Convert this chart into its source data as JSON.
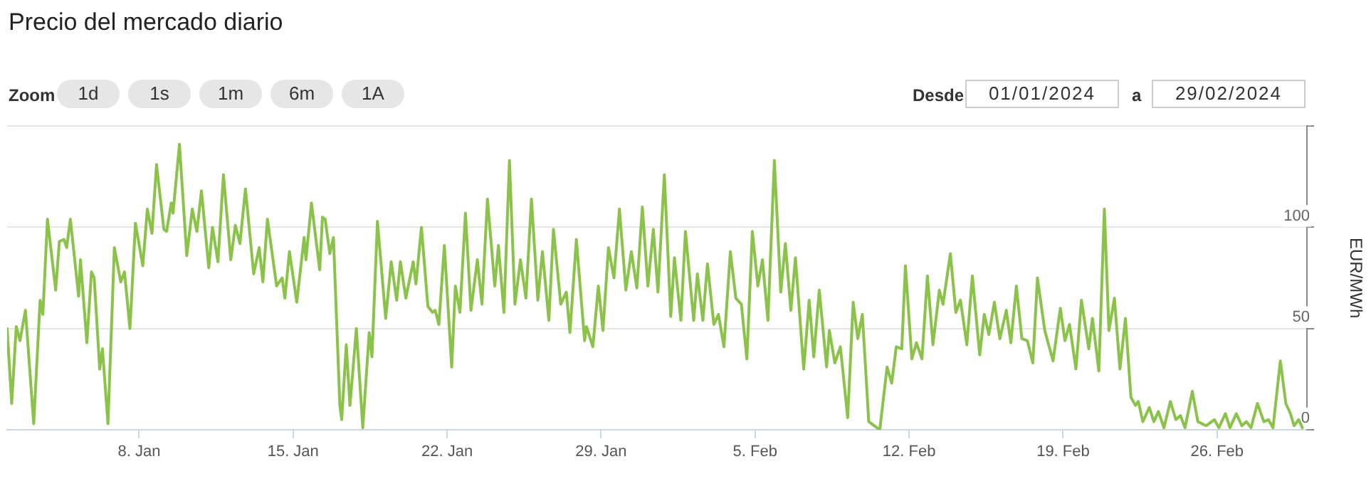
{
  "chart_data": {
    "type": "line",
    "title": "Precio del mercado diario",
    "ylabel": "EUR/MWh",
    "annotations": [
      "Zoom",
      "1d",
      "1s",
      "1m",
      "6m",
      "1A",
      "Desde",
      "01/01/2024",
      "a",
      "29/02/2024"
    ],
    "xlim": [
      "2024-01-02T00:00",
      "2024-03-01T02:00"
    ],
    "xticks": [
      {
        "value": "2024-01-08",
        "label": "8. Jan"
      },
      {
        "value": "2024-01-15",
        "label": "15. Jan"
      },
      {
        "value": "2024-01-22",
        "label": "22. Jan"
      },
      {
        "value": "2024-01-29",
        "label": "29. Jan"
      },
      {
        "value": "2024-02-05",
        "label": "5. Feb"
      },
      {
        "value": "2024-02-12",
        "label": "12. Feb"
      },
      {
        "value": "2024-02-19",
        "label": "19. Feb"
      },
      {
        "value": "2024-02-26",
        "label": "26. Feb"
      }
    ],
    "ylim": [
      0,
      150
    ],
    "yticks": [
      0,
      50,
      100,
      {
        "value": 150,
        "label": null
      }
    ],
    "grid": "y",
    "legend": false,
    "marker": "none",
    "line_style": "solid",
    "series": [
      {
        "color": "#8bc34a",
        "x": [
          "2024-01-02T00:00",
          "2024-01-02T05:00",
          "2024-01-02T10:00",
          "2024-01-02T14:00",
          "2024-01-02T20:00",
          "2024-01-03T05:00",
          "2024-01-03T12:00",
          "2024-01-03T15:00",
          "2024-01-03T20:00",
          "2024-01-04T05:00",
          "2024-01-04T09:00",
          "2024-01-04T14:00",
          "2024-01-04T17:00",
          "2024-01-04T21:00",
          "2024-01-05T06:00",
          "2024-01-05T08:00",
          "2024-01-05T15:00",
          "2024-01-05T20:00",
          "2024-01-05T23:00",
          "2024-01-06T05:00",
          "2024-01-06T08:00",
          "2024-01-06T14:00",
          "2024-01-06T21:00",
          "2024-01-07T04:00",
          "2024-01-07T08:00",
          "2024-01-07T14:00",
          "2024-01-07T20:00",
          "2024-01-08T04:00",
          "2024-01-08T09:00",
          "2024-01-08T14:00",
          "2024-01-08T19:00",
          "2024-01-09T03:00",
          "2024-01-09T06:00",
          "2024-01-09T11:00",
          "2024-01-09T13:00",
          "2024-01-09T20:00",
          "2024-01-10T04:00",
          "2024-01-10T10:00",
          "2024-01-10T15:00",
          "2024-01-10T20:00",
          "2024-01-11T04:00",
          "2024-01-11T08:00",
          "2024-01-11T14:00",
          "2024-01-11T20:00",
          "2024-01-12T04:00",
          "2024-01-12T09:00",
          "2024-01-12T14:00",
          "2024-01-12T20:00",
          "2024-01-13T05:00",
          "2024-01-13T11:00",
          "2024-01-13T15:00",
          "2024-01-13T20:00",
          "2024-01-14T06:00",
          "2024-01-14T12:00",
          "2024-01-14T15:00",
          "2024-01-14T20:00",
          "2024-01-15T04:00",
          "2024-01-15T12:00",
          "2024-01-15T14:00",
          "2024-01-15T20:00",
          "2024-01-16T05:00",
          "2024-01-16T08:00",
          "2024-01-16T11:00",
          "2024-01-16T16:00",
          "2024-01-16T20:00",
          "2024-01-17T03:00",
          "2024-01-17T05:00",
          "2024-01-17T10:00",
          "2024-01-17T14:00",
          "2024-01-17T21:00",
          "2024-01-18T04:00",
          "2024-01-18T11:00",
          "2024-01-18T14:00",
          "2024-01-18T20:00",
          "2024-01-19T05:00",
          "2024-01-19T11:00",
          "2024-01-19T17:00",
          "2024-01-19T21:00",
          "2024-01-20T03:00",
          "2024-01-20T11:00",
          "2024-01-20T14:00",
          "2024-01-20T20:00",
          "2024-01-21T03:00",
          "2024-01-21T08:00",
          "2024-01-21T11:00",
          "2024-01-21T15:00",
          "2024-01-21T21:00",
          "2024-01-22T05:00",
          "2024-01-22T09:00",
          "2024-01-22T14:00",
          "2024-01-22T20:00",
          "2024-01-23T02:00",
          "2024-01-23T09:00",
          "2024-01-23T14:00",
          "2024-01-23T20:00",
          "2024-01-24T04:00",
          "2024-01-24T08:00",
          "2024-01-24T14:00",
          "2024-01-24T20:00",
          "2024-01-25T02:00",
          "2024-01-25T08:00",
          "2024-01-25T14:00",
          "2024-01-25T20:00",
          "2024-01-26T03:00",
          "2024-01-26T08:00",
          "2024-01-26T15:00",
          "2024-01-26T20:00",
          "2024-01-27T04:00",
          "2024-01-27T10:00",
          "2024-01-27T14:00",
          "2024-01-27T21:00",
          "2024-01-28T06:00",
          "2024-01-28T08:00",
          "2024-01-28T15:00",
          "2024-01-28T21:00",
          "2024-01-29T02:00",
          "2024-01-29T08:00",
          "2024-01-29T14:00",
          "2024-01-29T20:00",
          "2024-01-30T03:00",
          "2024-01-30T09:00",
          "2024-01-30T15:00",
          "2024-01-30T21:00",
          "2024-01-31T03:00",
          "2024-01-31T09:00",
          "2024-01-31T14:00",
          "2024-01-31T21:00",
          "2024-02-01T04:00",
          "2024-02-01T08:00",
          "2024-02-01T15:00",
          "2024-02-01T20:00",
          "2024-02-02T05:00",
          "2024-02-02T09:00",
          "2024-02-02T15:00",
          "2024-02-02T20:00",
          "2024-02-03T03:00",
          "2024-02-03T08:00",
          "2024-02-03T14:00",
          "2024-02-03T21:00",
          "2024-02-04T03:00",
          "2024-02-04T09:00",
          "2024-02-04T15:00",
          "2024-02-04T21:00",
          "2024-02-05T03:00",
          "2024-02-05T08:00",
          "2024-02-05T14:00",
          "2024-02-05T21:00",
          "2024-02-06T04:00",
          "2024-02-06T09:00",
          "2024-02-06T15:00",
          "2024-02-06T20:00",
          "2024-02-07T05:00",
          "2024-02-07T11:00",
          "2024-02-07T16:00",
          "2024-02-07T22:00",
          "2024-02-08T06:00",
          "2024-02-08T09:00",
          "2024-02-08T15:00",
          "2024-02-08T21:00",
          "2024-02-09T05:00",
          "2024-02-09T11:00",
          "2024-02-09T16:00",
          "2024-02-09T21:00",
          "2024-02-10T04:00",
          "2024-02-10T10:00",
          "2024-02-10T16:00",
          "2024-02-11T00:00",
          "2024-02-11T05:00",
          "2024-02-11T10:00",
          "2024-02-11T16:00",
          "2024-02-11T20:00",
          "2024-02-12T03:00",
          "2024-02-12T08:00",
          "2024-02-12T14:00",
          "2024-02-12T20:00",
          "2024-02-13T02:00",
          "2024-02-13T09:00",
          "2024-02-13T13:00",
          "2024-02-13T21:00",
          "2024-02-14T03:00",
          "2024-02-14T08:00",
          "2024-02-14T15:00",
          "2024-02-14T21:00",
          "2024-02-15T05:00",
          "2024-02-15T10:00",
          "2024-02-15T15:00",
          "2024-02-15T21:00",
          "2024-02-16T03:00",
          "2024-02-16T10:00",
          "2024-02-16T15:00",
          "2024-02-16T21:00",
          "2024-02-17T03:00",
          "2024-02-17T09:00",
          "2024-02-17T15:00",
          "2024-02-17T20:00",
          "2024-02-18T04:00",
          "2024-02-18T13:00",
          "2024-02-18T21:00",
          "2024-02-19T02:00",
          "2024-02-19T07:00",
          "2024-02-19T14:00",
          "2024-02-19T20:00",
          "2024-02-20T04:00",
          "2024-02-20T08:00",
          "2024-02-20T15:00",
          "2024-02-20T21:00",
          "2024-02-21T02:00",
          "2024-02-21T08:00",
          "2024-02-21T14:00",
          "2024-02-21T20:00",
          "2024-02-22T02:00",
          "2024-02-22T07:00",
          "2024-02-22T10:00",
          "2024-02-22T15:00",
          "2024-02-22T22:00",
          "2024-02-23T03:00",
          "2024-02-23T08:00",
          "2024-02-23T14:00",
          "2024-02-23T21:00",
          "2024-02-24T03:00",
          "2024-02-24T08:00",
          "2024-02-24T13:00",
          "2024-02-24T21:00",
          "2024-02-25T03:00",
          "2024-02-25T12:00",
          "2024-02-25T21:00",
          "2024-02-26T02:00",
          "2024-02-26T09:00",
          "2024-02-26T14:00",
          "2024-02-26T21:00",
          "2024-02-27T03:00",
          "2024-02-27T08:00",
          "2024-02-27T13:00",
          "2024-02-27T20:00",
          "2024-02-28T03:00",
          "2024-02-28T08:00",
          "2024-02-28T13:00",
          "2024-02-28T21:00",
          "2024-02-29T03:00",
          "2024-02-29T08:00",
          "2024-02-29T12:00",
          "2024-02-29T17:00",
          "2024-02-29T21:00"
        ],
        "values": [
          50,
          13,
          51,
          44,
          59,
          3,
          64,
          57,
          104,
          69,
          93,
          94,
          90,
          104,
          66,
          84,
          43,
          78,
          75,
          30,
          40,
          3,
          90,
          73,
          78,
          50,
          102,
          81,
          109,
          97,
          131,
          99,
          98,
          112,
          107,
          141,
          86,
          109,
          98,
          118,
          80,
          100,
          83,
          126,
          84,
          101,
          92,
          119,
          77,
          90,
          73,
          104,
          71,
          75,
          65,
          88,
          63,
          95,
          84,
          112,
          79,
          105,
          104,
          87,
          95,
          12,
          5,
          42,
          12,
          50,
          1,
          48,
          36,
          103,
          55,
          83,
          64,
          83,
          65,
          83,
          72,
          100,
          61,
          58,
          59,
          52,
          91,
          31,
          71,
          58,
          107,
          59,
          84,
          62,
          114,
          71,
          91,
          58,
          133,
          62,
          84,
          65,
          114,
          64,
          88,
          54,
          99,
          62,
          68,
          48,
          94,
          44,
          51,
          41,
          71,
          49,
          90,
          75,
          109,
          69,
          88,
          70,
          110,
          71,
          99,
          68,
          126,
          56,
          85,
          54,
          98,
          54,
          77,
          54,
          82,
          52,
          57,
          41,
          88,
          65,
          62,
          35,
          98,
          71,
          84,
          54,
          133,
          68,
          92,
          59,
          85,
          30,
          64,
          36,
          69,
          31,
          49,
          33,
          41,
          6,
          63,
          45,
          57,
          4,
          2,
          0,
          31,
          23,
          41,
          40,
          81,
          35,
          43,
          35,
          76,
          42,
          69,
          62,
          87,
          58,
          64,
          42,
          76,
          37,
          57,
          47,
          63,
          45,
          59,
          43,
          71,
          45,
          44,
          33,
          75,
          49,
          34,
          60,
          44,
          52,
          30,
          64,
          40,
          55,
          29,
          109,
          49,
          65,
          30,
          55,
          16,
          12,
          14,
          4,
          11,
          4,
          9,
          1,
          14,
          5,
          7,
          1,
          19,
          4,
          2,
          5,
          1,
          8,
          1,
          8,
          2,
          4,
          1,
          13,
          4,
          5,
          1,
          34,
          13,
          8,
          2,
          5,
          1
        ]
      }
    ]
  }
}
